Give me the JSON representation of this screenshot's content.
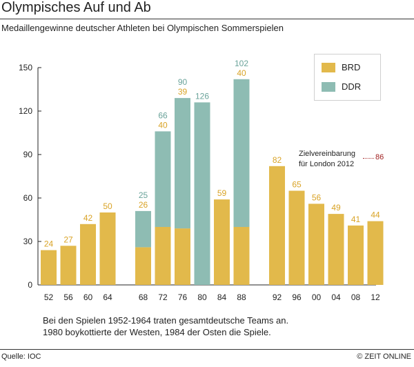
{
  "title": "Olympisches Auf und Ab",
  "subtitle": "Medaillengewinne deutscher Athleten bei Olympischen Sommerspielen",
  "legend": {
    "brd": "BRD",
    "ddr": "DDR"
  },
  "colors": {
    "brd": "#e2b94b",
    "ddr": "#8ebcb3",
    "brd_label": "#d9a326",
    "ddr_label": "#6aa39a",
    "target": "#a02020"
  },
  "target": {
    "label_line1": "Zielvereinbarung",
    "label_line2": "für London 2012",
    "value": "86"
  },
  "note": {
    "line1": "Bei den Spielen 1952-1964 traten gesamtdeutsche Teams an.",
    "line2": "1980 boykottierte der Westen, 1984 der Osten die Spiele."
  },
  "footer": {
    "source": "Quelle: IOC",
    "credit": "© ZEIT ONLINE"
  },
  "chart_data": {
    "type": "bar",
    "stacked": true,
    "ylim": [
      0,
      150
    ],
    "yticks": [
      0,
      30,
      60,
      90,
      120,
      150
    ],
    "categories": [
      "52",
      "56",
      "60",
      "64",
      "68",
      "72",
      "76",
      "80",
      "84",
      "88",
      "92",
      "96",
      "00",
      "04",
      "08",
      "12"
    ],
    "group_breaks_after": [
      "64",
      "88"
    ],
    "series": [
      {
        "name": "BRD",
        "values": [
          24,
          27,
          42,
          50,
          26,
          40,
          39,
          null,
          59,
          40,
          82,
          65,
          56,
          49,
          41,
          44
        ]
      },
      {
        "name": "DDR",
        "values": [
          null,
          null,
          null,
          null,
          25,
          66,
          90,
          126,
          null,
          102,
          null,
          null,
          null,
          null,
          null,
          null
        ]
      }
    ]
  }
}
